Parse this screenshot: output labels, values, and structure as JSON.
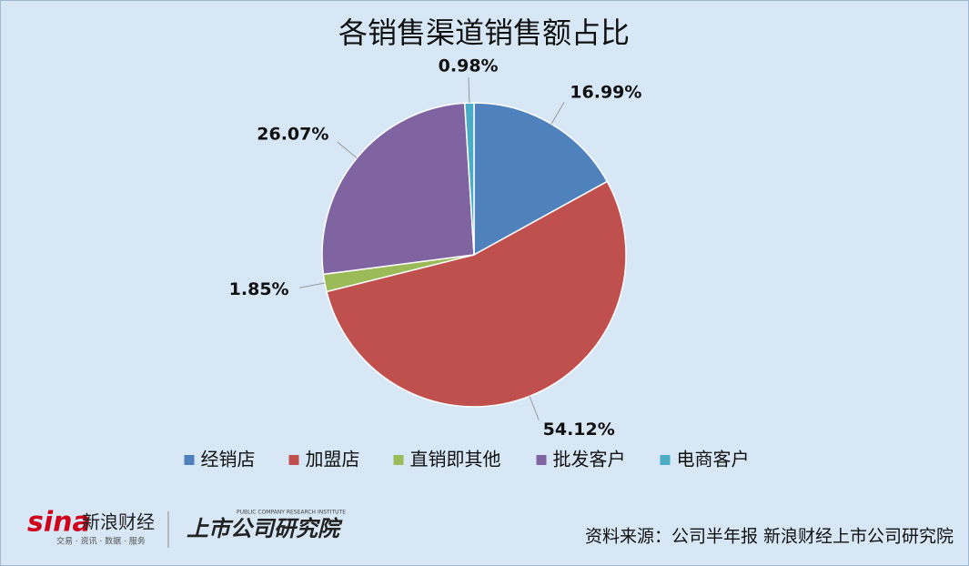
{
  "chart_data": {
    "type": "pie",
    "title": "各销售渠道销售额占比",
    "categories": [
      "经销店",
      "加盟店",
      "直销即其他",
      "批发客户",
      "电商客户"
    ],
    "values": [
      16.99,
      54.12,
      1.85,
      26.07,
      0.98
    ],
    "value_labels": [
      "16.99%",
      "54.12%",
      "1.85%",
      "26.07%",
      "0.98%"
    ],
    "colors": [
      "#4f81bd",
      "#c0504d",
      "#9bbb59",
      "#8064a2",
      "#4bacc6"
    ],
    "legend": "bottom"
  },
  "footer": {
    "source": "资料来源：公司半年报 新浪财经上市公司研究院",
    "brand": "新浪财经",
    "brand_sub": "交易 · 资讯 · 数据 · 服务",
    "institute": "上市公司研究院",
    "institute_en": "PUBLIC COMPANY RESEARCH INSTITUTE"
  }
}
